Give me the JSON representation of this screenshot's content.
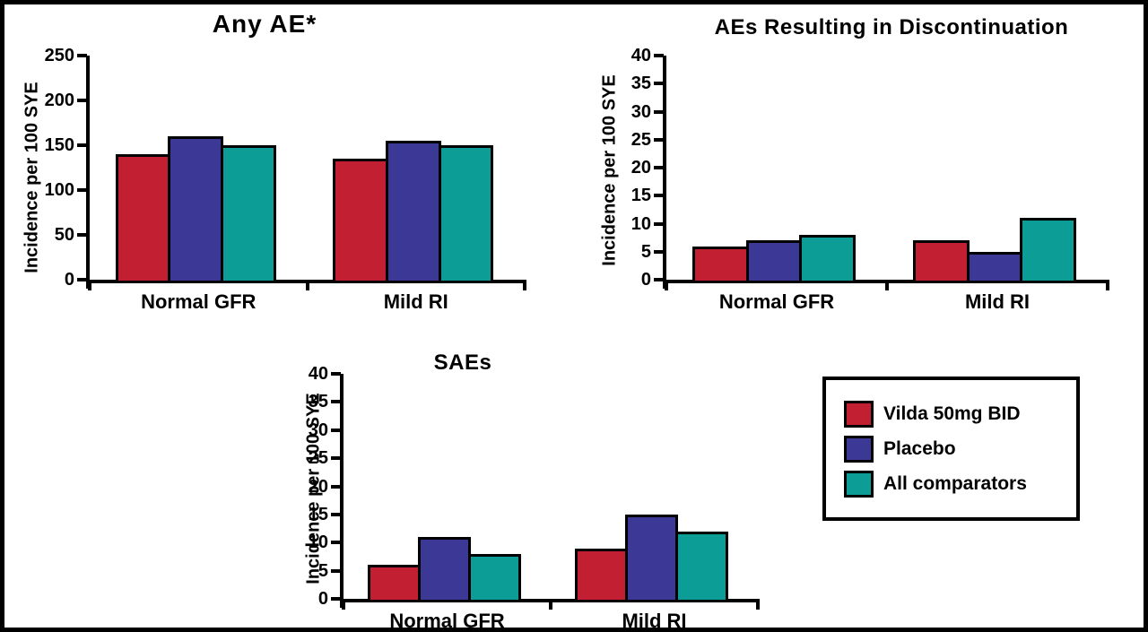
{
  "figure": {
    "background": "#ffffff",
    "frame_color": "#000000",
    "text_color": "#000000",
    "axis_color": "#000000"
  },
  "colors": {
    "vilda": "#c22032",
    "placebo": "#3b3896",
    "comparators": "#0c9d97"
  },
  "legend": {
    "items": [
      {
        "label": "Vilda 50mg BID",
        "color": "#c22032"
      },
      {
        "label": "Placebo",
        "color": "#3b3896"
      },
      {
        "label": "All comparators",
        "color": "#0c9d97"
      }
    ]
  },
  "chart_data": [
    {
      "id": "any-ae",
      "type": "bar",
      "title": "Any AE*",
      "xlabel": "",
      "ylabel": "Incidence per 100 SYE",
      "ylim": [
        0,
        250
      ],
      "yticks": [
        0,
        50,
        100,
        150,
        200,
        250
      ],
      "categories": [
        "Normal GFR",
        "Mild RI"
      ],
      "series": [
        {
          "name": "Vilda 50mg BID",
          "color": "#c22032",
          "values": [
            140,
            135
          ]
        },
        {
          "name": "Placebo",
          "color": "#3b3896",
          "values": [
            160,
            155
          ]
        },
        {
          "name": "All comparators",
          "color": "#0c9d97",
          "values": [
            150,
            150
          ]
        }
      ],
      "grid": false,
      "legend_position": "none"
    },
    {
      "id": "aes-discontinuation",
      "type": "bar",
      "title": "AEs Resulting in Discontinuation",
      "xlabel": "",
      "ylabel": "Incidence per 100 SYE",
      "ylim": [
        0,
        40
      ],
      "yticks": [
        0,
        5,
        10,
        15,
        20,
        25,
        30,
        35,
        40
      ],
      "categories": [
        "Normal GFR",
        "Mild RI"
      ],
      "series": [
        {
          "name": "Vilda 50mg BID",
          "color": "#c22032",
          "values": [
            6,
            7
          ]
        },
        {
          "name": "Placebo",
          "color": "#3b3896",
          "values": [
            7,
            5
          ]
        },
        {
          "name": "All comparators",
          "color": "#0c9d97",
          "values": [
            8,
            11
          ]
        }
      ],
      "grid": false,
      "legend_position": "none"
    },
    {
      "id": "saes",
      "type": "bar",
      "title": "SAEs",
      "xlabel": "",
      "ylabel": "Incidence per 100 SYE",
      "ylim": [
        0,
        40
      ],
      "yticks": [
        0,
        5,
        10,
        15,
        20,
        25,
        30,
        35,
        40
      ],
      "categories": [
        "Normal GFR",
        "Mild RI"
      ],
      "series": [
        {
          "name": "Vilda 50mg BID",
          "color": "#c22032",
          "values": [
            6,
            9
          ]
        },
        {
          "name": "Placebo",
          "color": "#3b3896",
          "values": [
            11,
            15
          ]
        },
        {
          "name": "All comparators",
          "color": "#0c9d97",
          "values": [
            8,
            12
          ]
        }
      ],
      "grid": false,
      "legend_position": "none"
    }
  ]
}
